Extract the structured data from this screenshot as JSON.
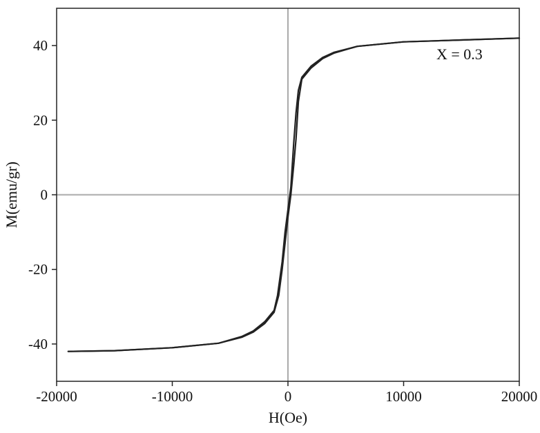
{
  "chart_data": {
    "type": "line",
    "title": "",
    "xlabel": "H(Oe)",
    "ylabel": "M(emu/gr)",
    "xlim": [
      -20000,
      20000
    ],
    "ylim": [
      -50,
      50
    ],
    "xticks": [
      -20000,
      -10000,
      0,
      10000,
      20000
    ],
    "yticks": [
      -40,
      -20,
      0,
      20,
      40
    ],
    "x_tick_labels": [
      "-20000",
      "-10000",
      "0",
      "10000",
      "20000"
    ],
    "y_tick_labels": [
      "-40",
      "-20",
      "0",
      "20",
      "40"
    ],
    "grid": false,
    "zero_lines": true,
    "annotation": "X = 0.3",
    "line_color": "#222222",
    "zero_line_color": "#aaaaaa",
    "series": [
      {
        "branch": "descending",
        "points": [
          [
            20000,
            42.0
          ],
          [
            15000,
            41.5
          ],
          [
            10000,
            41.0
          ],
          [
            6000,
            39.8
          ],
          [
            4000,
            38.0
          ],
          [
            3000,
            36.5
          ],
          [
            2000,
            34.0
          ],
          [
            1200,
            31.0
          ],
          [
            900,
            25.0
          ],
          [
            700,
            15.0
          ],
          [
            500,
            8.0
          ],
          [
            250,
            0.0
          ],
          [
            0,
            -6.0
          ],
          [
            -250,
            -13.0
          ],
          [
            -500,
            -20.0
          ],
          [
            -800,
            -27.0
          ],
          [
            -1200,
            -31.5
          ],
          [
            -2000,
            -34.5
          ],
          [
            -3000,
            -36.8
          ],
          [
            -4000,
            -38.2
          ],
          [
            -6000,
            -39.8
          ],
          [
            -10000,
            -41.0
          ],
          [
            -15000,
            -41.8
          ],
          [
            -19000,
            -42.0
          ]
        ]
      },
      {
        "branch": "ascending",
        "points": [
          [
            -19000,
            -42.0
          ],
          [
            -15000,
            -41.8
          ],
          [
            -10000,
            -41.0
          ],
          [
            -6000,
            -39.8
          ],
          [
            -4000,
            -38.0
          ],
          [
            -3000,
            -36.5
          ],
          [
            -2000,
            -34.0
          ],
          [
            -1200,
            -31.0
          ],
          [
            -900,
            -27.0
          ],
          [
            -500,
            -18.0
          ],
          [
            -250,
            -10.0
          ],
          [
            0,
            -4.0
          ],
          [
            250,
            2.0
          ],
          [
            500,
            14.0
          ],
          [
            700,
            22.0
          ],
          [
            900,
            28.0
          ],
          [
            1200,
            31.5
          ],
          [
            2000,
            34.5
          ],
          [
            3000,
            36.8
          ],
          [
            4000,
            38.2
          ],
          [
            6000,
            39.8
          ],
          [
            10000,
            41.0
          ],
          [
            15000,
            41.5
          ],
          [
            20000,
            42.0
          ]
        ]
      }
    ]
  }
}
